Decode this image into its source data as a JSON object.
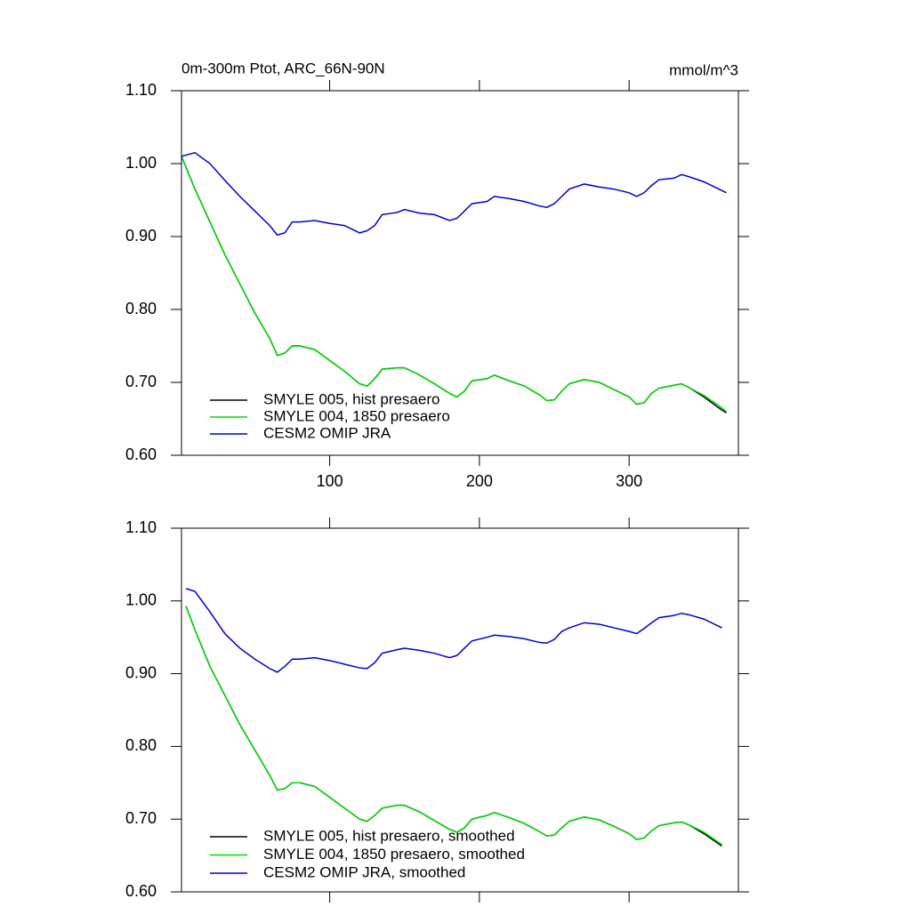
{
  "chart_data": [
    {
      "type": "line",
      "title": "0m-300m Ptot, ARC_66N-90N",
      "units": "mmol/m^3",
      "x": [
        1,
        10,
        20,
        30,
        40,
        50,
        60,
        65,
        70,
        75,
        80,
        90,
        100,
        110,
        120,
        125,
        130,
        135,
        145,
        150,
        160,
        170,
        180,
        185,
        190,
        195,
        205,
        210,
        220,
        230,
        240,
        245,
        250,
        255,
        260,
        270,
        280,
        290,
        300,
        305,
        310,
        315,
        320,
        330,
        335,
        340,
        350,
        360,
        365
      ],
      "series": [
        {
          "name": "SMYLE 005, hist presaero",
          "color": "#000000",
          "values": [
            1.01,
            0.965,
            0.92,
            0.875,
            0.835,
            0.795,
            0.76,
            0.737,
            0.74,
            0.75,
            0.75,
            0.745,
            0.73,
            0.715,
            0.698,
            0.695,
            0.705,
            0.718,
            0.72,
            0.72,
            0.71,
            0.698,
            0.685,
            0.68,
            0.688,
            0.702,
            0.705,
            0.71,
            0.702,
            0.695,
            0.683,
            0.675,
            0.676,
            0.688,
            0.698,
            0.704,
            0.7,
            0.69,
            0.68,
            0.67,
            0.672,
            0.685,
            0.692,
            0.696,
            0.698,
            0.693,
            0.68,
            0.665,
            0.658
          ]
        },
        {
          "name": "SMYLE 004, 1850 presaero",
          "color": "#00dd00",
          "values": [
            1.01,
            0.965,
            0.92,
            0.875,
            0.835,
            0.795,
            0.76,
            0.737,
            0.74,
            0.75,
            0.75,
            0.745,
            0.73,
            0.715,
            0.698,
            0.695,
            0.705,
            0.718,
            0.72,
            0.72,
            0.71,
            0.698,
            0.685,
            0.68,
            0.688,
            0.702,
            0.705,
            0.71,
            0.702,
            0.695,
            0.683,
            0.675,
            0.676,
            0.688,
            0.698,
            0.704,
            0.7,
            0.69,
            0.68,
            0.67,
            0.672,
            0.685,
            0.692,
            0.696,
            0.698,
            0.693,
            0.682,
            0.668,
            0.66
          ]
        },
        {
          "name": "CESM2 OMIP JRA",
          "color": "#0000cc",
          "values": [
            1.01,
            1.015,
            1.0,
            0.977,
            0.955,
            0.935,
            0.915,
            0.902,
            0.905,
            0.92,
            0.92,
            0.922,
            0.918,
            0.915,
            0.905,
            0.908,
            0.915,
            0.93,
            0.933,
            0.937,
            0.932,
            0.93,
            0.922,
            0.925,
            0.935,
            0.945,
            0.948,
            0.955,
            0.952,
            0.948,
            0.942,
            0.94,
            0.945,
            0.955,
            0.965,
            0.972,
            0.968,
            0.965,
            0.96,
            0.955,
            0.96,
            0.97,
            0.978,
            0.98,
            0.985,
            0.982,
            0.975,
            0.965,
            0.96
          ]
        }
      ],
      "xlim": [
        1,
        373
      ],
      "xticks": [
        100,
        200,
        300
      ],
      "ylim": [
        0.6,
        1.1
      ],
      "yticks": [
        {
          "value": 0.6,
          "label": "0.60"
        },
        {
          "value": 0.7,
          "label": "0.70"
        },
        {
          "value": 0.8,
          "label": "0.80"
        },
        {
          "value": 0.9,
          "label": "0.90"
        },
        {
          "value": 1.0,
          "label": "1.00"
        },
        {
          "value": 1.1,
          "label": "1.10"
        }
      ],
      "legend": "lower left"
    },
    {
      "type": "line",
      "x": [
        4,
        10,
        20,
        30,
        40,
        50,
        60,
        65,
        70,
        75,
        80,
        90,
        100,
        110,
        120,
        125,
        130,
        135,
        145,
        150,
        160,
        170,
        180,
        185,
        190,
        195,
        205,
        210,
        220,
        230,
        240,
        245,
        250,
        255,
        260,
        270,
        280,
        290,
        300,
        305,
        310,
        315,
        320,
        330,
        335,
        340,
        350,
        362
      ],
      "series": [
        {
          "name": "SMYLE 005, hist presaero, smoothed",
          "color": "#000000",
          "values": [
            0.993,
            0.96,
            0.91,
            0.87,
            0.83,
            0.795,
            0.76,
            0.74,
            0.742,
            0.75,
            0.75,
            0.745,
            0.73,
            0.715,
            0.7,
            0.697,
            0.705,
            0.715,
            0.719,
            0.719,
            0.71,
            0.698,
            0.686,
            0.682,
            0.688,
            0.7,
            0.705,
            0.709,
            0.702,
            0.694,
            0.683,
            0.677,
            0.678,
            0.688,
            0.697,
            0.703,
            0.699,
            0.69,
            0.68,
            0.672,
            0.674,
            0.684,
            0.691,
            0.695,
            0.696,
            0.692,
            0.68,
            0.663
          ]
        },
        {
          "name": "SMYLE 004, 1850 presaero, smoothed",
          "color": "#00dd00",
          "values": [
            0.993,
            0.96,
            0.91,
            0.87,
            0.83,
            0.795,
            0.76,
            0.74,
            0.742,
            0.75,
            0.75,
            0.745,
            0.73,
            0.715,
            0.7,
            0.697,
            0.705,
            0.715,
            0.719,
            0.719,
            0.71,
            0.698,
            0.686,
            0.682,
            0.688,
            0.7,
            0.705,
            0.709,
            0.702,
            0.694,
            0.683,
            0.677,
            0.678,
            0.688,
            0.697,
            0.703,
            0.699,
            0.69,
            0.68,
            0.672,
            0.674,
            0.684,
            0.691,
            0.695,
            0.696,
            0.692,
            0.682,
            0.665
          ]
        },
        {
          "name": "CESM2 OMIP JRA, smoothed",
          "color": "#0000cc",
          "values": [
            1.017,
            1.013,
            0.985,
            0.955,
            0.935,
            0.92,
            0.907,
            0.902,
            0.91,
            0.92,
            0.92,
            0.922,
            0.918,
            0.913,
            0.908,
            0.907,
            0.915,
            0.928,
            0.933,
            0.935,
            0.932,
            0.928,
            0.922,
            0.925,
            0.935,
            0.945,
            0.95,
            0.953,
            0.951,
            0.948,
            0.943,
            0.942,
            0.947,
            0.958,
            0.963,
            0.97,
            0.968,
            0.963,
            0.958,
            0.955,
            0.962,
            0.97,
            0.977,
            0.98,
            0.983,
            0.981,
            0.975,
            0.963
          ]
        }
      ],
      "xlim": [
        1,
        373
      ],
      "xticks": [
        100,
        200,
        300
      ],
      "ylim": [
        0.6,
        1.1
      ],
      "yticks": [
        {
          "value": 0.6,
          "label": "0.60"
        },
        {
          "value": 0.7,
          "label": "0.70"
        },
        {
          "value": 0.8,
          "label": "0.80"
        },
        {
          "value": 0.9,
          "label": "0.90"
        },
        {
          "value": 1.0,
          "label": "1.00"
        },
        {
          "value": 1.1,
          "label": "1.10"
        }
      ],
      "legend": "lower left"
    }
  ]
}
